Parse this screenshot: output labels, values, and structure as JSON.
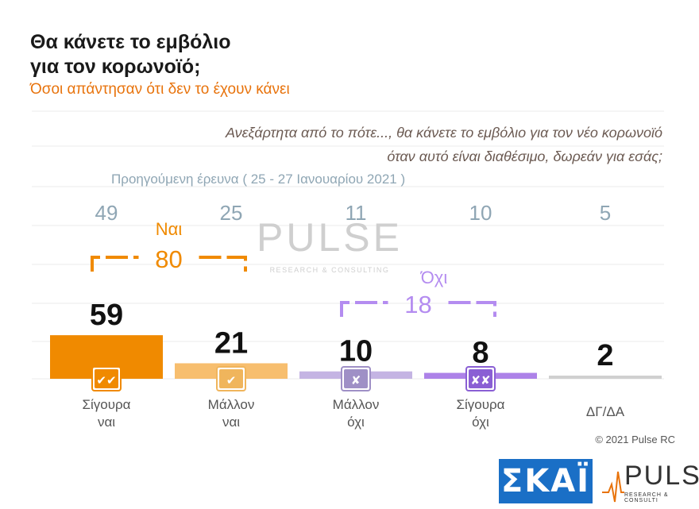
{
  "header": {
    "title_line1": "Θα κάνετε το εμβόλιο",
    "title_line2": "για τον κορωνοϊό;",
    "subtitle": "Όσοι απάντησαν ότι δεν το έχουν κάνει",
    "question_line1": "Ανεξάρτητα από το πότε..., θα κάνετε το εμβόλιο για τον νέο κορωνοϊό",
    "question_line2": "όταν αυτό είναι διαθέσιμο, δωρεάν για εσάς;"
  },
  "chart_data": {
    "type": "bar",
    "categories": [
      "Σίγουρα ναι",
      "Μάλλον ναι",
      "Μάλλον όχι",
      "Σίγουρα όχι",
      "ΔΓ/ΔΑ"
    ],
    "category_lines": [
      [
        "Σίγουρα",
        "ναι"
      ],
      [
        "Μάλλον",
        "ναι"
      ],
      [
        "Μάλλον",
        "όχι"
      ],
      [
        "Σίγουρα",
        "όχι"
      ],
      [
        "ΔΓ/ΔΑ"
      ]
    ],
    "values": [
      59,
      21,
      10,
      8,
      2
    ],
    "previous_label": "Προηγούμενη έρευνα  ( 25 - 27  Ιανουαρίου  2021 )",
    "previous_values": [
      49,
      25,
      11,
      10,
      5
    ],
    "colors": [
      "#f08a00",
      "#f7be6e",
      "#c4b4e3",
      "#ad82e8",
      "#d0d0d0"
    ],
    "icon_names": [
      "double-check-icon",
      "check-icon",
      "cross-icon",
      "double-cross-icon",
      ""
    ],
    "icon_glyphs": [
      "✔✔",
      "✔",
      "✘",
      "✘✘",
      ""
    ],
    "icon_colors": [
      "#f08a00",
      "#f0b55c",
      "#9f90c6",
      "#8a5fd4",
      ""
    ],
    "groups": [
      {
        "label": "Ναι",
        "value": "80",
        "from": 0,
        "to": 1,
        "color": "#f08a00"
      },
      {
        "label": "Όχι",
        "value": "18",
        "from": 2,
        "to": 3,
        "color": "#b48cf0"
      }
    ],
    "grid": true
  },
  "watermark": {
    "word": "PULSE",
    "tagline": "RESEARCH & CONSULTING"
  },
  "footer": {
    "copyright": "© 2021 Pulse RC",
    "skai_logo": "ΣΚΑΪ",
    "pulse_logo": "PULSE",
    "pulse_tagline": "RESEARCH & CONSULTI"
  }
}
